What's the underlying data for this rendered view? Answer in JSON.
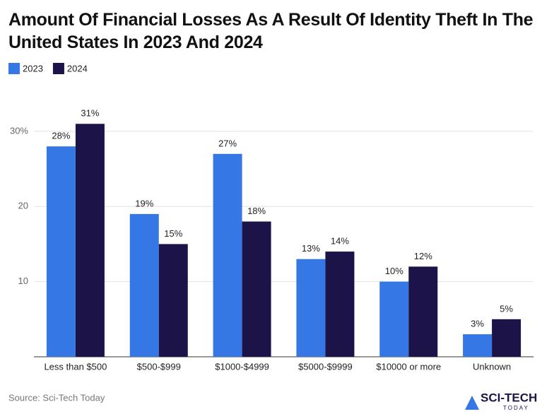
{
  "chart_data": {
    "type": "bar",
    "title": "Amount Of Financial Losses As A Result Of Identity Theft In The United States In 2023 And 2024",
    "categories": [
      "Less than $500",
      "$500-$999",
      "$1000-$4999",
      "$5000-$9999",
      "$10000 or more",
      "Unknown"
    ],
    "series": [
      {
        "name": "2023",
        "color": "#3578e5",
        "values": [
          28,
          19,
          27,
          13,
          10,
          3
        ],
        "value_labels": [
          "28%",
          "19%",
          "27%",
          "13%",
          "10%",
          "3%"
        ]
      },
      {
        "name": "2024",
        "color": "#1c1448",
        "values": [
          31,
          15,
          18,
          14,
          12,
          5
        ],
        "value_labels": [
          "31%",
          "15%",
          "18%",
          "14%",
          "12%",
          "5%"
        ]
      }
    ],
    "ylim": [
      0,
      33
    ],
    "yticks": [
      10,
      20,
      {
        "value": 30,
        "label": "30%"
      }
    ],
    "grid": true,
    "legend": "top-left"
  },
  "source": "Source: Sci-Tech Today",
  "brand": {
    "name": "SCI-TECH",
    "tagline": "TODAY"
  }
}
